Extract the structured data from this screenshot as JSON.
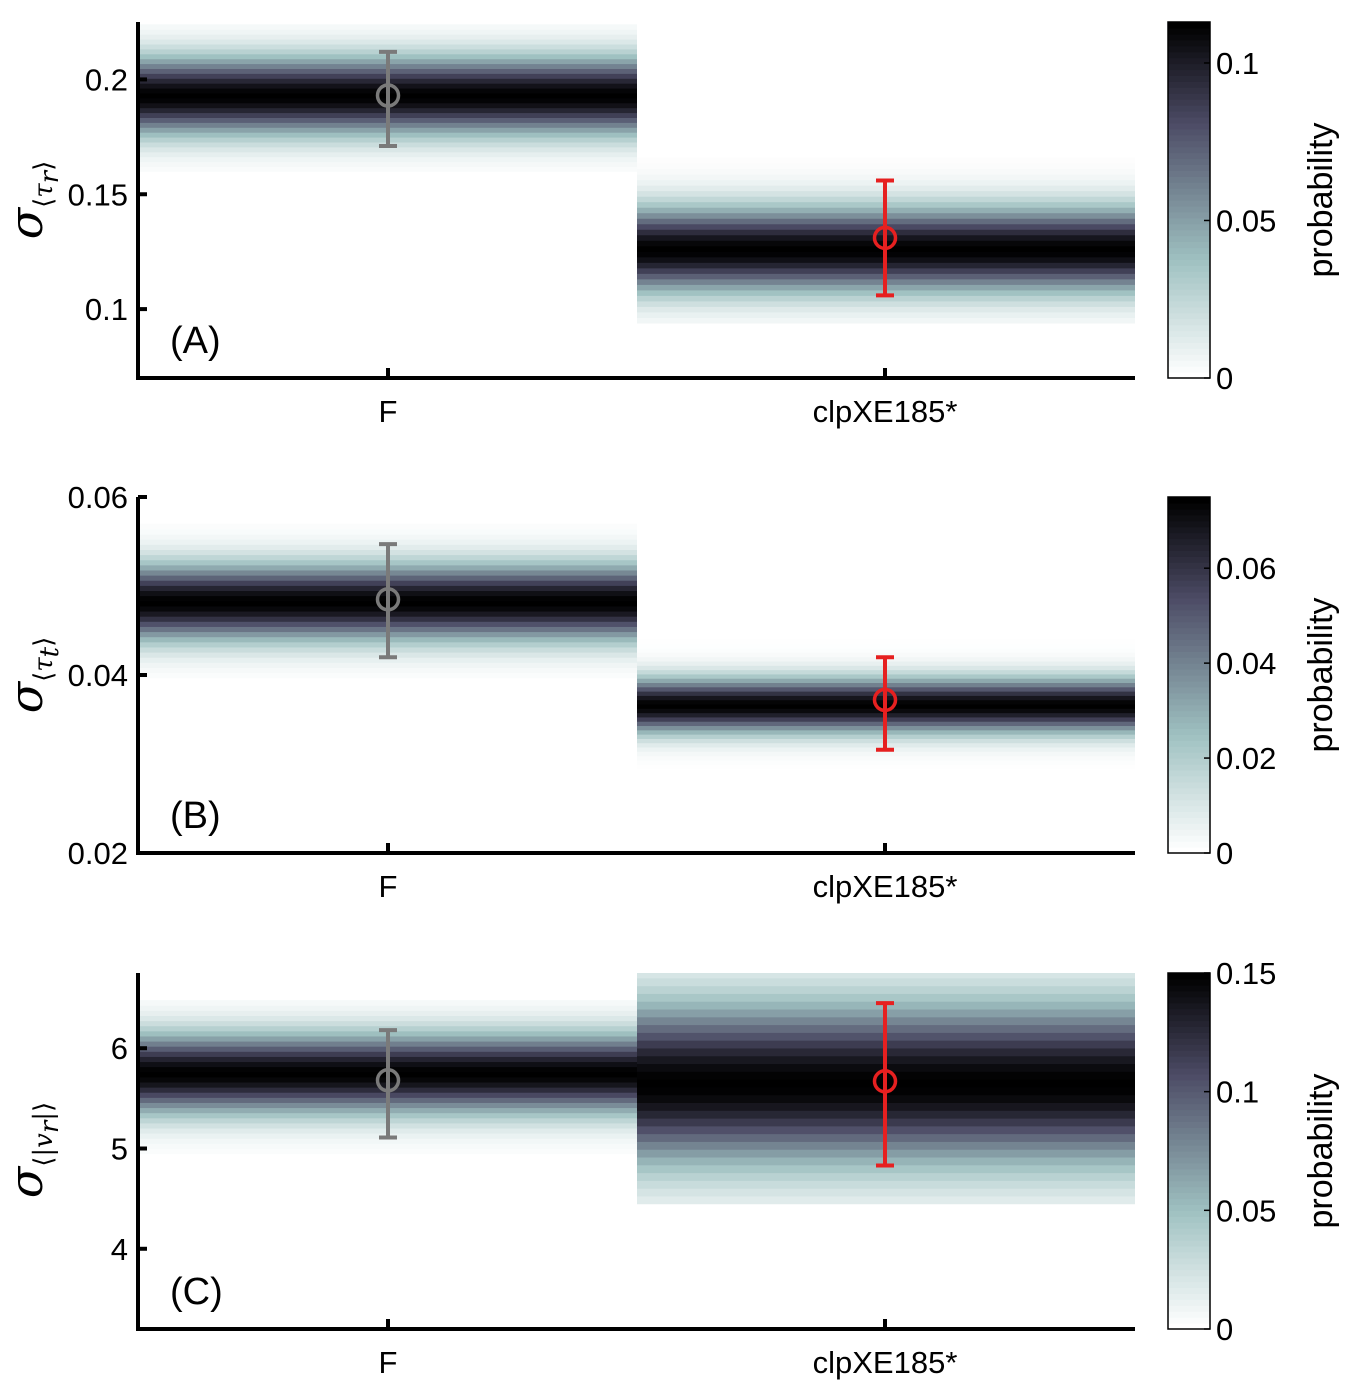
{
  "colors": {
    "F": "#7a7a7a",
    "clpXE185*": "#e62020",
    "colormap": [
      "#ffffff",
      "#9fc1c1",
      "#4c4b65",
      "#000000"
    ]
  },
  "colorbar_title": "probability",
  "chart_data": [
    {
      "type": "heatmap",
      "panel_label": "(A)",
      "ylabel": {
        "symbol": "σ",
        "subscript_open": "⟨",
        "subscript_var": "τ",
        "subscript_index": "r",
        "subscript_close": "⟩"
      },
      "categories": [
        "F",
        "clpXE185*"
      ],
      "ylim": [
        0.07,
        0.225
      ],
      "yticks": [
        0.1,
        0.15,
        0.2
      ],
      "ytick_labels": [
        "0.1",
        "0.15",
        "0.2"
      ],
      "series": [
        {
          "category": "F",
          "mean": 0.193,
          "error_low": 0.171,
          "error_high": 0.212,
          "dist_center": 0.193,
          "dist_sigma": 0.0115,
          "dist_min": 0.16,
          "dist_max": 0.224
        },
        {
          "category": "clpXE185*",
          "mean": 0.131,
          "error_low": 0.106,
          "error_high": 0.156,
          "dist_center": 0.126,
          "dist_sigma": 0.0125,
          "dist_min": 0.094,
          "dist_max": 0.166
        }
      ],
      "colorbar": {
        "range": [
          0,
          0.113
        ],
        "ticks": [
          0,
          0.05,
          0.1
        ],
        "tick_labels": [
          "0",
          "0.05",
          "0.1"
        ],
        "title": "probability"
      }
    },
    {
      "type": "heatmap",
      "panel_label": "(B)",
      "ylabel": {
        "symbol": "σ",
        "subscript_open": "⟨",
        "subscript_var": "τ",
        "subscript_index": "t",
        "subscript_close": "⟩"
      },
      "categories": [
        "F",
        "clpXE185*"
      ],
      "ylim": [
        0.02,
        0.06
      ],
      "yticks": [
        0.02,
        0.04,
        0.06
      ],
      "ytick_labels": [
        "0.02",
        "0.04",
        "0.06"
      ],
      "series": [
        {
          "category": "F",
          "mean": 0.0485,
          "error_low": 0.042,
          "error_high": 0.0547,
          "dist_center": 0.0482,
          "dist_sigma": 0.0029,
          "dist_min": 0.0397,
          "dist_max": 0.057
        },
        {
          "category": "clpXE185*",
          "mean": 0.0372,
          "error_low": 0.0316,
          "error_high": 0.042,
          "dist_center": 0.0366,
          "dist_sigma": 0.0021,
          "dist_min": 0.0295,
          "dist_max": 0.044
        }
      ],
      "colorbar": {
        "range": [
          0,
          0.075
        ],
        "ticks": [
          0,
          0.02,
          0.04,
          0.06
        ],
        "tick_labels": [
          "0",
          "0.02",
          "0.04",
          "0.06"
        ],
        "title": "probability"
      }
    },
    {
      "type": "heatmap",
      "panel_label": "(C)",
      "ylabel": {
        "symbol": "σ",
        "subscript_open": "⟨|",
        "subscript_var": "v",
        "subscript_index": "r",
        "subscript_close": "|⟩"
      },
      "categories": [
        "F",
        "clpXE185*"
      ],
      "ylim": [
        3.2,
        6.75
      ],
      "yticks": [
        4,
        5,
        6
      ],
      "ytick_labels": [
        "4",
        "5",
        "6"
      ],
      "series": [
        {
          "category": "F",
          "mean": 5.68,
          "error_low": 5.11,
          "error_high": 6.18,
          "dist_center": 5.75,
          "dist_sigma": 0.27,
          "dist_min": 4.95,
          "dist_max": 6.48
        },
        {
          "category": "clpXE185*",
          "mean": 5.67,
          "error_low": 4.83,
          "error_high": 6.45,
          "dist_center": 5.65,
          "dist_sigma": 0.55,
          "dist_min": 4.45,
          "dist_max": 6.78
        }
      ],
      "colorbar": {
        "range": [
          0,
          0.15
        ],
        "ticks": [
          0,
          0.05,
          0.1,
          0.15
        ],
        "tick_labels": [
          "0",
          "0.05",
          "0.1",
          "0.15"
        ],
        "title": "probability"
      }
    }
  ]
}
